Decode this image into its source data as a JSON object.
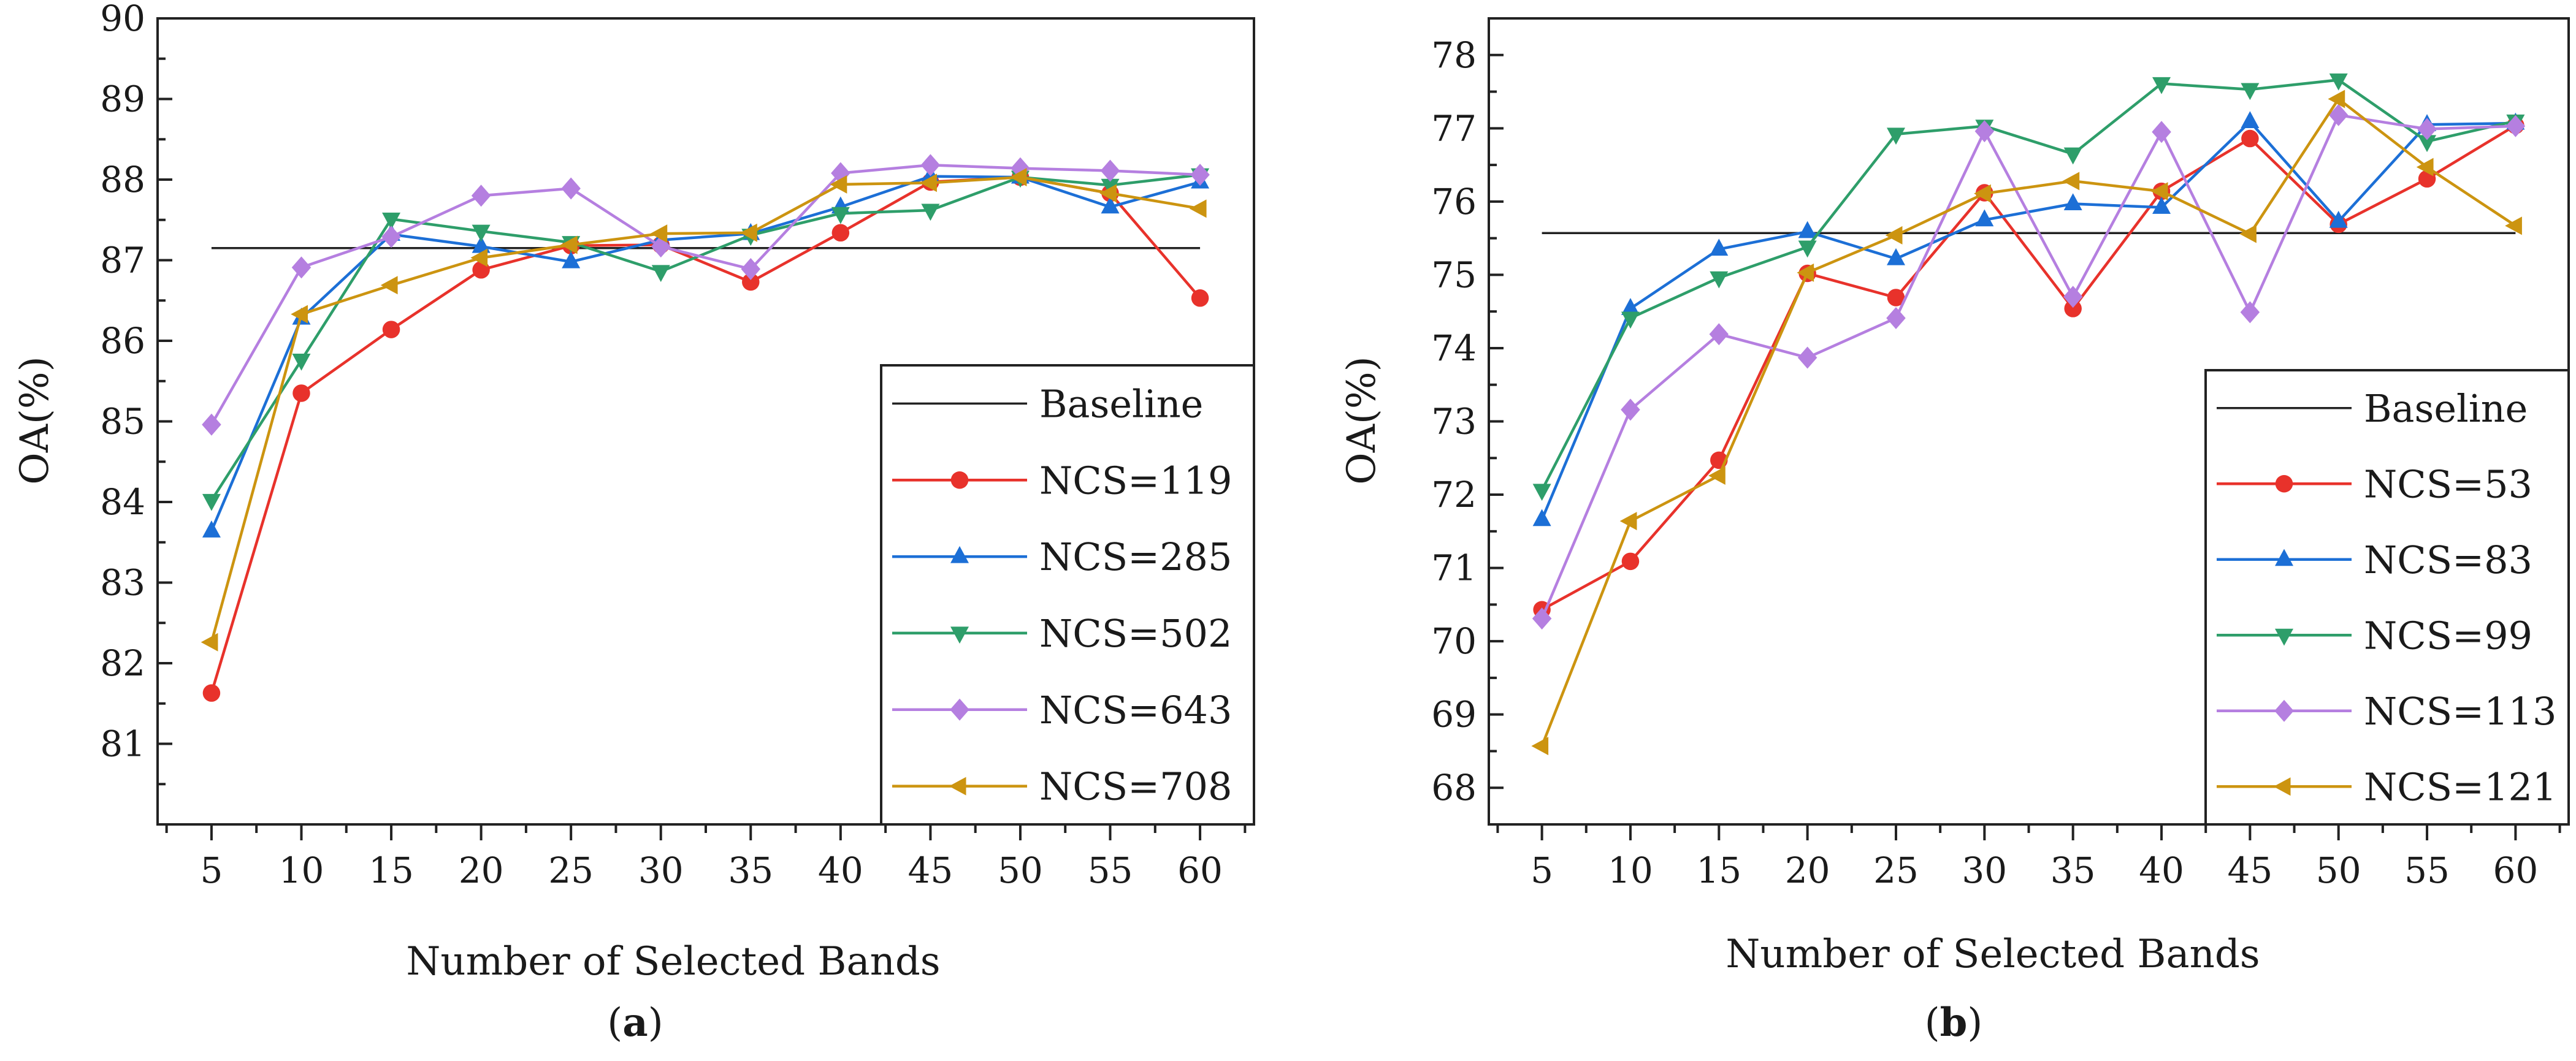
{
  "figure": {
    "panel_labels": [
      {
        "open": "(",
        "letter": "a",
        "close": ")"
      },
      {
        "open": "(",
        "letter": "b",
        "close": ")"
      }
    ]
  },
  "chart_data": [
    {
      "type": "line",
      "panel": "a",
      "xlabel": "Number of Selected Bands",
      "ylabel": "OA(%)",
      "xlim": [
        2,
        63
      ],
      "ylim": [
        80,
        90
      ],
      "xticks": [
        5,
        10,
        15,
        20,
        25,
        30,
        35,
        40,
        45,
        50,
        55,
        60
      ],
      "yticks": [
        81,
        82,
        83,
        84,
        85,
        86,
        87,
        88,
        89,
        90
      ],
      "legend_position": "bottom-right",
      "baseline": {
        "name": "Baseline",
        "value": 87.15,
        "x_range": [
          5,
          60
        ],
        "color": "#222222"
      },
      "x": [
        5,
        10,
        15,
        20,
        25,
        30,
        35,
        40,
        45,
        50,
        55,
        60
      ],
      "series": [
        {
          "name": "NCS=119",
          "marker": "circle",
          "color": "#e8322b",
          "values": [
            81.63,
            85.35,
            86.14,
            86.88,
            87.18,
            87.19,
            86.73,
            87.34,
            87.97,
            88.03,
            87.83,
            86.53
          ]
        },
        {
          "name": "NCS=285",
          "marker": "triangle-up",
          "color": "#1c6fd6",
          "values": [
            83.64,
            86.28,
            87.32,
            87.17,
            86.98,
            87.25,
            87.33,
            87.66,
            88.04,
            88.03,
            87.66,
            87.97
          ]
        },
        {
          "name": "NCS=502",
          "marker": "triangle-down",
          "color": "#2e9e6a",
          "values": [
            84.02,
            85.76,
            87.51,
            87.36,
            87.22,
            86.86,
            87.31,
            87.58,
            87.62,
            88.03,
            87.93,
            88.06
          ]
        },
        {
          "name": "NCS=643",
          "marker": "diamond",
          "color": "#b57fe0",
          "values": [
            84.96,
            86.91,
            87.29,
            87.8,
            87.89,
            87.17,
            86.89,
            88.08,
            88.18,
            88.14,
            88.11,
            88.06
          ]
        },
        {
          "name": "NCS=708",
          "marker": "triangle-left",
          "color": "#cc9410",
          "values": [
            82.26,
            86.33,
            86.69,
            87.03,
            87.19,
            87.33,
            87.34,
            87.94,
            87.96,
            88.03,
            87.83,
            87.64
          ]
        }
      ]
    },
    {
      "type": "line",
      "panel": "b",
      "xlabel": "Number of Selected Bands",
      "ylabel": "OA(%)",
      "xlim": [
        2,
        63
      ],
      "ylim": [
        67.5,
        78.5
      ],
      "xticks": [
        5,
        10,
        15,
        20,
        25,
        30,
        35,
        40,
        45,
        50,
        55,
        60
      ],
      "yticks": [
        68,
        69,
        70,
        71,
        72,
        73,
        74,
        75,
        76,
        77,
        78
      ],
      "legend_position": "bottom-right",
      "baseline": {
        "name": "Baseline",
        "value": 75.57,
        "x_range": [
          5,
          60
        ],
        "color": "#222222"
      },
      "x": [
        5,
        10,
        15,
        20,
        25,
        30,
        35,
        40,
        45,
        50,
        55,
        60
      ],
      "series": [
        {
          "name": "NCS=53",
          "marker": "circle",
          "color": "#e8322b",
          "values": [
            70.43,
            71.09,
            72.47,
            75.02,
            74.69,
            76.12,
            74.54,
            76.14,
            76.86,
            75.69,
            76.31,
            77.04
          ]
        },
        {
          "name": "NCS=83",
          "marker": "triangle-up",
          "color": "#1c6fd6",
          "values": [
            71.66,
            74.54,
            75.35,
            75.59,
            75.22,
            75.75,
            75.97,
            75.92,
            77.09,
            75.73,
            77.05,
            77.07
          ]
        },
        {
          "name": "NCS=99",
          "marker": "triangle-down",
          "color": "#2e9e6a",
          "values": [
            72.06,
            74.41,
            74.96,
            75.38,
            76.92,
            77.03,
            76.65,
            77.61,
            77.53,
            77.66,
            76.82,
            77.1
          ]
        },
        {
          "name": "NCS=113",
          "marker": "diamond",
          "color": "#b57fe0",
          "values": [
            70.31,
            73.16,
            74.19,
            73.87,
            74.41,
            76.96,
            74.7,
            76.95,
            74.49,
            77.18,
            76.99,
            77.03
          ]
        },
        {
          "name": "NCS=121",
          "marker": "triangle-left",
          "color": "#cc9410",
          "values": [
            68.57,
            71.64,
            72.26,
            75.03,
            75.54,
            76.11,
            76.28,
            76.14,
            75.56,
            77.4,
            76.47,
            75.67
          ]
        }
      ]
    }
  ]
}
